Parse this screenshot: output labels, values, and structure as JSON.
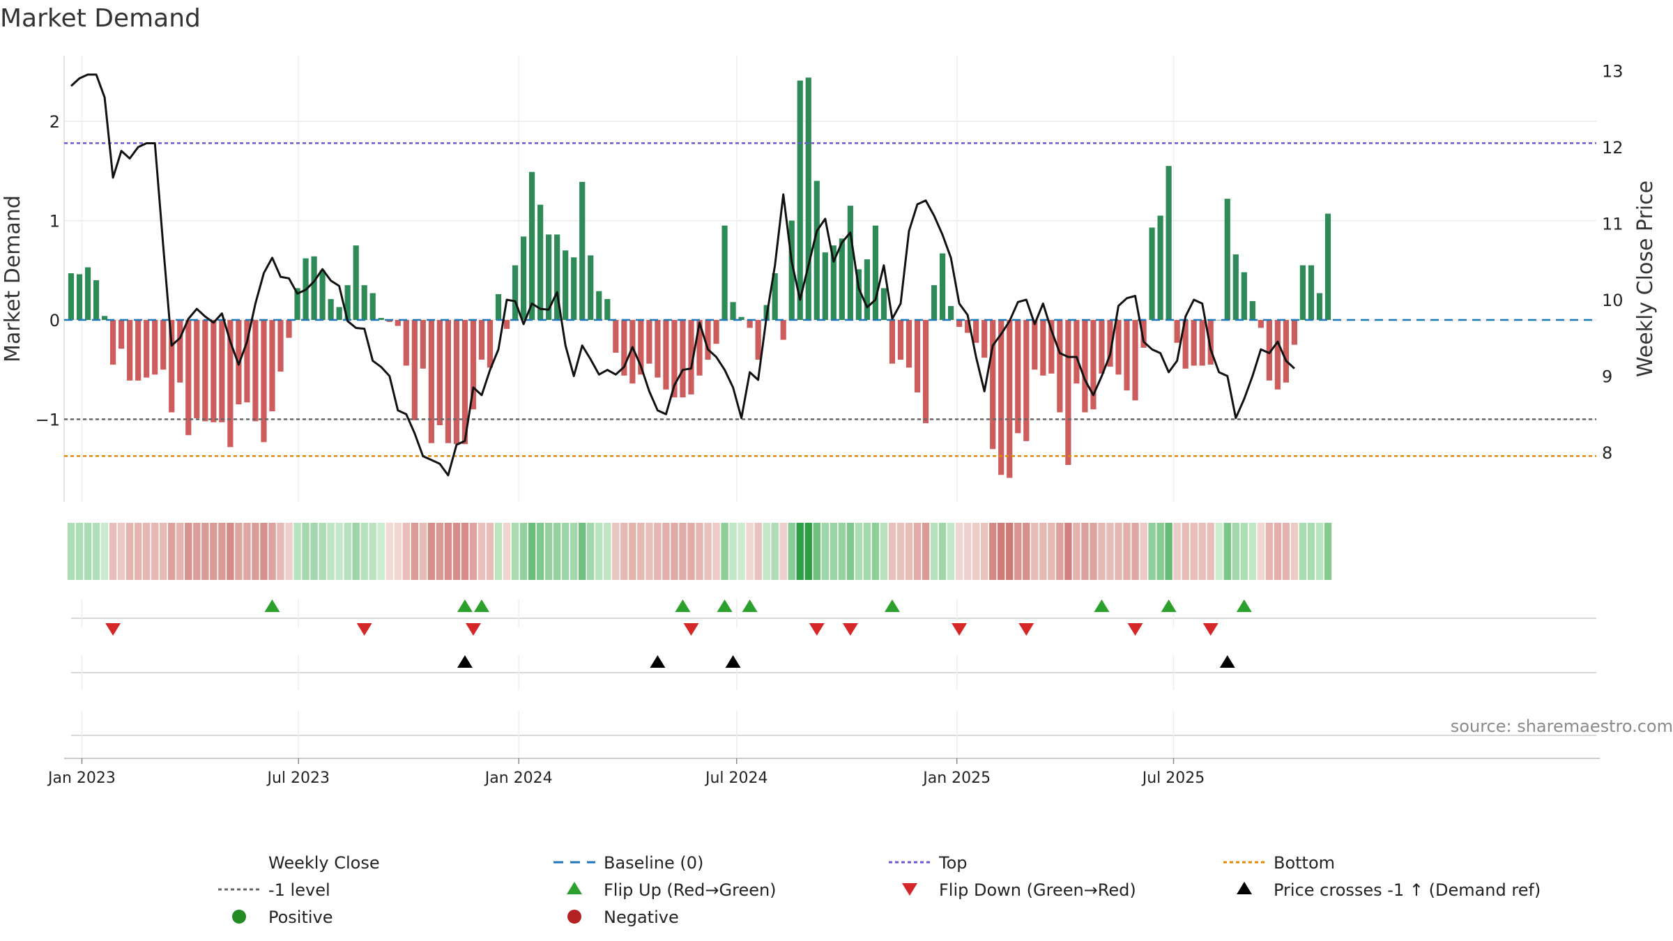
{
  "chart_data": {
    "type": "bar",
    "title": "Market Demand",
    "ylabel": "Market Demand",
    "y2label": "Weekly Close Price",
    "ylim": [
      -1.8,
      2.5
    ],
    "y_ticks": [
      2,
      1,
      0,
      -1
    ],
    "y_tick_labels": [
      "2",
      "1",
      "0",
      "−1"
    ],
    "y2lim": [
      7.6,
      13.3
    ],
    "y2_ticks": [
      13,
      12,
      11,
      10,
      9,
      8
    ],
    "y2_tick_labels": [
      "13",
      "12",
      "11",
      "10",
      "9",
      "8"
    ],
    "x_start": "2022-12-23",
    "x_step_days": 7,
    "x_ticks": [
      {
        "label": "Jan 2023",
        "date": "2023-01-01"
      },
      {
        "label": "Jul 2023",
        "date": "2023-07-01"
      },
      {
        "label": "Jan 2024",
        "date": "2024-01-01"
      },
      {
        "label": "Jul 2024",
        "date": "2024-07-01"
      },
      {
        "label": "Jan 2025",
        "date": "2025-01-01"
      },
      {
        "label": "Jul 2025",
        "date": "2025-07-01"
      }
    ],
    "demand": [
      0.47,
      0.46,
      0.53,
      0.4,
      0.04,
      -0.45,
      -0.29,
      -0.61,
      -0.61,
      -0.58,
      -0.55,
      -0.5,
      -0.93,
      -0.63,
      -1.16,
      -0.99,
      -1.02,
      -1.03,
      -1.03,
      -1.28,
      -0.85,
      -0.83,
      -1.02,
      -1.23,
      -0.92,
      -0.52,
      -0.18,
      0.32,
      0.62,
      0.64,
      0.5,
      0.21,
      0.13,
      0.35,
      0.75,
      0.35,
      0.27,
      0.02,
      -0.02,
      -0.06,
      -0.46,
      -1.01,
      -0.49,
      -1.24,
      -1.06,
      -1.24,
      -1.25,
      -1.25,
      -0.9,
      -0.4,
      -0.48,
      0.26,
      -0.09,
      0.55,
      0.84,
      1.49,
      1.16,
      0.86,
      0.86,
      0.7,
      0.63,
      1.39,
      0.65,
      0.29,
      0.21,
      -0.33,
      -0.56,
      -0.64,
      -0.55,
      -0.44,
      -0.58,
      -0.7,
      -0.78,
      -0.78,
      -0.75,
      -0.56,
      -0.4,
      -0.24,
      0.95,
      0.18,
      0.03,
      -0.08,
      -0.4,
      0.15,
      0.47,
      -0.2,
      1.0,
      2.41,
      2.44,
      1.4,
      0.68,
      0.75,
      0.82,
      1.15,
      0.51,
      0.61,
      0.95,
      0.32,
      -0.44,
      -0.4,
      -0.48,
      -0.73,
      -1.04,
      0.35,
      0.67,
      0.14,
      -0.07,
      -0.13,
      -0.23,
      -0.38,
      -1.3,
      -1.56,
      -1.59,
      -1.14,
      -1.22,
      -0.5,
      -0.56,
      -0.54,
      -0.93,
      -1.46,
      -0.64,
      -0.93,
      -0.9,
      -0.54,
      -0.47,
      -0.55,
      -0.71,
      -0.81,
      -0.28,
      0.93,
      1.05,
      1.55,
      -0.23,
      -0.49,
      -0.46,
      -0.46,
      -0.45,
      0.0,
      1.22,
      0.66,
      0.48,
      0.19,
      -0.08,
      -0.61,
      -0.7,
      -0.63,
      -0.25,
      0.55,
      0.55,
      0.27,
      1.07
    ],
    "weekly_close": [
      12.8,
      12.9,
      12.95,
      12.95,
      12.65,
      11.6,
      11.95,
      11.85,
      12.0,
      12.05,
      12.05,
      10.7,
      9.4,
      9.5,
      9.75,
      9.88,
      9.78,
      9.7,
      9.82,
      9.45,
      9.15,
      9.45,
      9.95,
      10.35,
      10.55,
      10.3,
      10.28,
      10.08,
      10.13,
      10.24,
      10.4,
      10.25,
      10.18,
      9.72,
      9.63,
      9.62,
      9.2,
      9.12,
      9.0,
      8.55,
      8.5,
      8.25,
      7.95,
      7.9,
      7.85,
      7.7,
      8.1,
      8.15,
      8.85,
      8.75,
      9.08,
      9.35,
      10.0,
      9.98,
      9.68,
      9.95,
      9.88,
      9.87,
      10.1,
      9.4,
      9.0,
      9.4,
      9.22,
      9.02,
      9.08,
      9.02,
      9.12,
      9.38,
      9.13,
      8.8,
      8.55,
      8.5,
      8.88,
      9.08,
      9.1,
      9.7,
      9.35,
      9.25,
      9.08,
      8.85,
      8.45,
      9.05,
      8.95,
      9.78,
      10.45,
      11.38,
      10.5,
      10.0,
      10.45,
      10.9,
      11.06,
      10.5,
      10.75,
      10.88,
      10.15,
      9.9,
      10.0,
      10.45,
      9.75,
      9.95,
      10.9,
      11.25,
      11.3,
      11.1,
      10.85,
      10.55,
      9.95,
      9.8,
      9.25,
      8.8,
      9.4,
      9.55,
      9.72,
      9.97,
      10.0,
      9.68,
      9.95,
      9.6,
      9.3,
      9.25,
      9.25,
      8.95,
      8.75,
      9.0,
      9.28,
      9.92,
      10.02,
      10.05,
      9.45,
      9.35,
      9.3,
      9.05,
      9.2,
      9.78,
      10.0,
      9.95,
      9.35,
      9.05,
      9.0,
      8.45,
      8.7,
      9.0,
      9.35,
      9.3,
      9.45,
      9.2,
      9.1
    ],
    "flip_up_weeks": [
      24,
      47,
      49,
      73,
      78,
      81,
      98,
      123,
      131,
      140
    ],
    "flip_down_weeks": [
      5,
      35,
      48,
      74,
      89,
      93,
      106,
      114,
      127,
      136
    ],
    "price_cross_weeks": [
      47,
      70,
      79,
      138
    ],
    "top_level": 1.78,
    "bottom_level": -1.37,
    "minus_one_level": -1,
    "colors": {
      "positive": "#2e8b57",
      "negative": "#cd5c5c",
      "price_line": "#111111",
      "baseline": "#1f77b4",
      "top": "#6a5acd",
      "bottom": "#e08a00",
      "minus_one": "#666666",
      "flip_up": "#2ca02c",
      "flip_down": "#d62728",
      "price_cross": "#000000",
      "positive_dot": "#228b22",
      "negative_dot": "#b22222"
    },
    "legend": [
      {
        "label": "Weekly Close",
        "key": "weekly_close",
        "marker": "solid-line"
      },
      {
        "label": "Baseline (0)",
        "key": "baseline",
        "marker": "dashed-line"
      },
      {
        "label": "Top",
        "key": "top",
        "marker": "dotted-line"
      },
      {
        "label": "Bottom",
        "key": "bottom",
        "marker": "dotted-line"
      },
      {
        "label": "-1 level",
        "key": "minus_one",
        "marker": "dotted-line"
      },
      {
        "label": "Flip Up (Red→Green)",
        "key": "flip_up",
        "marker": "triangle-up"
      },
      {
        "label": "Flip Down (Green→Red)",
        "key": "flip_down",
        "marker": "triangle-down"
      },
      {
        "label": "Price crosses -1 ↑ (Demand ref)",
        "key": "price_cross",
        "marker": "triangle-up"
      },
      {
        "label": "Positive",
        "key": "positive_dot",
        "marker": "circle"
      },
      {
        "label": "Negative",
        "key": "negative_dot",
        "marker": "circle"
      }
    ],
    "legend_position": "bottom",
    "grid": true
  },
  "source_text": "source: sharemaestro.com"
}
